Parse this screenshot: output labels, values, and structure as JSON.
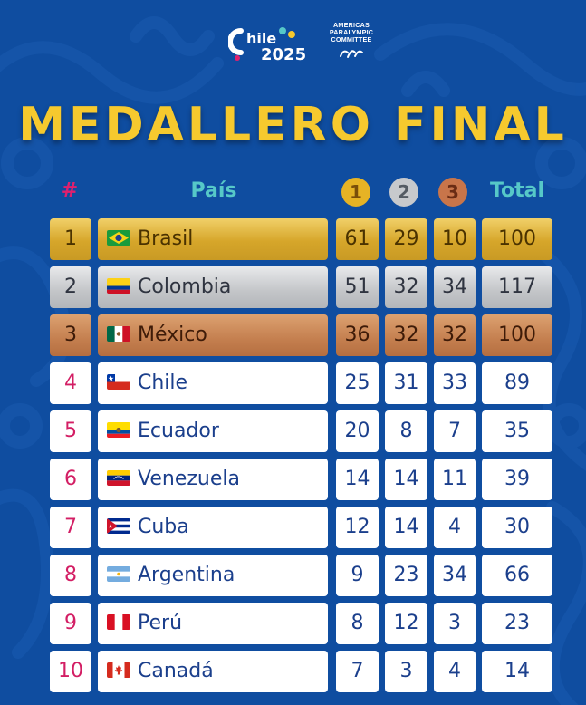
{
  "logos": {
    "chile_logo_text": "Chile 2025",
    "apc_lines": [
      "AMERICAS",
      "PARALYMPIC",
      "COMMITTEE"
    ]
  },
  "title": "MEDALLERO FINAL",
  "headers": {
    "rank": "#",
    "country": "País",
    "gold": "1",
    "silver": "2",
    "bronze": "3",
    "total": "Total"
  },
  "colors": {
    "background": "#0f4da0",
    "title": "#f6c92e",
    "rank_text": "#d31e64",
    "header_teal": "#56c8c8",
    "cell_text": "#1b3f8c"
  },
  "rows": [
    {
      "rank": "1",
      "country": "Brasil",
      "flag": "brazil-flag-icon",
      "gold": "61",
      "silver": "29",
      "bronze": "10",
      "total": "100"
    },
    {
      "rank": "2",
      "country": "Colombia",
      "flag": "colombia-flag-icon",
      "gold": "51",
      "silver": "32",
      "bronze": "34",
      "total": "117"
    },
    {
      "rank": "3",
      "country": "México",
      "flag": "mexico-flag-icon",
      "gold": "36",
      "silver": "32",
      "bronze": "32",
      "total": "100"
    },
    {
      "rank": "4",
      "country": "Chile",
      "flag": "chile-flag-icon",
      "gold": "25",
      "silver": "31",
      "bronze": "33",
      "total": "89"
    },
    {
      "rank": "5",
      "country": "Ecuador",
      "flag": "ecuador-flag-icon",
      "gold": "20",
      "silver": "8",
      "bronze": "7",
      "total": "35"
    },
    {
      "rank": "6",
      "country": "Venezuela",
      "flag": "venezuela-flag-icon",
      "gold": "14",
      "silver": "14",
      "bronze": "11",
      "total": "39"
    },
    {
      "rank": "7",
      "country": "Cuba",
      "flag": "cuba-flag-icon",
      "gold": "12",
      "silver": "14",
      "bronze": "4",
      "total": "30"
    },
    {
      "rank": "8",
      "country": "Argentina",
      "flag": "argentina-flag-icon",
      "gold": "9",
      "silver": "23",
      "bronze": "34",
      "total": "66"
    },
    {
      "rank": "9",
      "country": "Perú",
      "flag": "peru-flag-icon",
      "gold": "8",
      "silver": "12",
      "bronze": "3",
      "total": "23"
    },
    {
      "rank": "10",
      "country": "Canadá",
      "flag": "canada-flag-icon",
      "gold": "7",
      "silver": "3",
      "bronze": "4",
      "total": "14"
    }
  ]
}
